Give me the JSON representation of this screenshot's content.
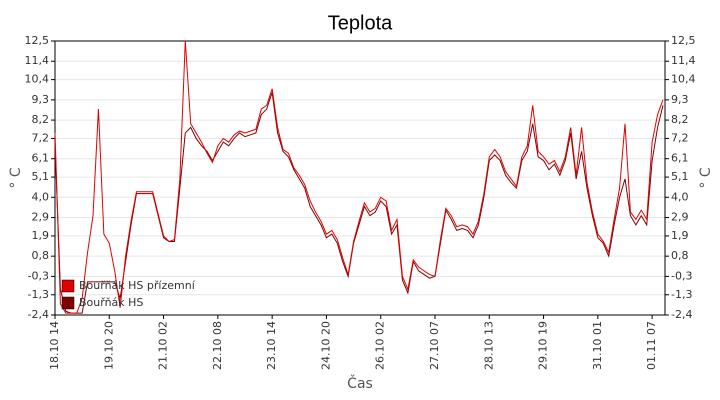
{
  "chart_data": {
    "type": "line",
    "title": "Teplota",
    "x_label": "Čas",
    "y_label": "° C",
    "y2_label": "° C",
    "categories": [
      "18.10 14",
      null,
      null,
      null,
      null,
      null,
      null,
      null,
      null,
      null,
      "19.10 20",
      null,
      null,
      null,
      null,
      null,
      null,
      null,
      null,
      null,
      "21.10 02",
      null,
      null,
      null,
      null,
      null,
      null,
      null,
      null,
      null,
      "22.10 08",
      null,
      null,
      null,
      null,
      null,
      null,
      null,
      null,
      null,
      "23.10 14",
      null,
      null,
      null,
      null,
      null,
      null,
      null,
      null,
      null,
      "24.10 20",
      null,
      null,
      null,
      null,
      null,
      null,
      null,
      null,
      null,
      "26.10 02",
      null,
      null,
      null,
      null,
      null,
      null,
      null,
      null,
      null,
      "27.10 07",
      null,
      null,
      null,
      null,
      null,
      null,
      null,
      null,
      null,
      "28.10 13",
      null,
      null,
      null,
      null,
      null,
      null,
      null,
      null,
      null,
      "29.10 19",
      null,
      null,
      null,
      null,
      null,
      null,
      null,
      null,
      null,
      "31.10 01",
      null,
      null,
      null,
      null,
      null,
      null,
      null,
      null,
      null,
      "01.11 07",
      null,
      null
    ],
    "series": [
      {
        "name": "Bouřňák HS přízemní",
        "color": "#e00000",
        "values": [
          7.5,
          -1.8,
          -2.3,
          -2.3,
          -2.3,
          -1.5,
          1,
          3,
          8.8,
          2,
          1.5,
          0,
          -2,
          0.8,
          2.7,
          4.3,
          4.3,
          4.3,
          4.3,
          3.1,
          1.9,
          1.6,
          1.7,
          5,
          12.5,
          8,
          7.5,
          7,
          6.4,
          5.9,
          6.8,
          7.2,
          7,
          7.4,
          7.6,
          7.5,
          7.6,
          7.7,
          8.8,
          9,
          9.9,
          7.8,
          6.6,
          6.4,
          5.6,
          5.2,
          4.7,
          3.8,
          3.2,
          2.7,
          2.0,
          2.2,
          1.7,
          0.7,
          -0.2,
          1.6,
          2.7,
          3.7,
          3.2,
          3.4,
          4.0,
          3.8,
          2.2,
          2.8,
          -0.3,
          -1.0,
          0.6,
          0.2,
          0.0,
          -0.2,
          -0.3,
          1.7,
          3.4,
          3.0,
          2.4,
          2.5,
          2.4,
          2.0,
          2.7,
          4.2,
          6.2,
          6.6,
          6.2,
          5.4,
          5.0,
          4.6,
          6.2,
          6.8,
          9.0,
          6.5,
          6.2,
          5.8,
          6.0,
          5.4,
          6.2,
          7.8,
          5.2,
          7.8,
          4.8,
          3.2,
          2.0,
          1.6,
          1.0,
          2.8,
          4.5,
          8.0,
          3.2,
          2.8,
          3.3,
          2.8,
          7.0,
          8.5,
          9.3
        ]
      },
      {
        "name": "Bouřňák HS",
        "color": "#800000",
        "values": [
          7.0,
          -1.0,
          -2.2,
          -2.3,
          -2.3,
          -2.3,
          -0.6,
          -0.6,
          -0.6,
          -0.6,
          -0.6,
          -0.6,
          -1.5,
          0.5,
          2.5,
          4.2,
          4.2,
          4.2,
          4.2,
          3.0,
          1.8,
          1.6,
          1.6,
          4.5,
          7.5,
          7.8,
          7.2,
          6.8,
          6.5,
          6.0,
          6.5,
          7.0,
          6.8,
          7.2,
          7.5,
          7.3,
          7.4,
          7.5,
          8.5,
          8.8,
          9.7,
          7.5,
          6.5,
          6.2,
          5.5,
          5.0,
          4.5,
          3.5,
          3.0,
          2.5,
          1.8,
          2.0,
          1.5,
          0.5,
          -0.3,
          1.5,
          2.5,
          3.5,
          3.0,
          3.2,
          3.8,
          3.5,
          2.0,
          2.5,
          -0.5,
          -1.2,
          0.5,
          0.0,
          -0.2,
          -0.4,
          -0.3,
          1.5,
          3.3,
          2.8,
          2.2,
          2.3,
          2.2,
          1.8,
          2.5,
          4.0,
          6.0,
          6.3,
          6.0,
          5.2,
          4.8,
          4.5,
          6.0,
          6.5,
          8.0,
          6.2,
          6.0,
          5.5,
          5.8,
          5.2,
          6.0,
          7.5,
          5.0,
          6.5,
          4.5,
          3.0,
          1.8,
          1.5,
          0.8,
          2.5,
          4.0,
          5.0,
          3.0,
          2.5,
          3.0,
          2.5,
          6.0,
          7.8,
          9.0
        ]
      }
    ],
    "ylim": [
      -2.4,
      12.5
    ],
    "yticks": [
      {
        "value": 12.5,
        "label": "12,5"
      },
      {
        "value": 11.4,
        "label": "11,4"
      },
      {
        "value": 10.4,
        "label": "10,4"
      },
      {
        "value": 9.3,
        "label": "9,3"
      },
      {
        "value": 8.2,
        "label": "8,2"
      },
      {
        "value": 7.2,
        "label": "7,2"
      },
      {
        "value": 6.1,
        "label": "6,1"
      },
      {
        "value": 5.1,
        "label": "5,1"
      },
      {
        "value": 4.0,
        "label": "4,0"
      },
      {
        "value": 2.9,
        "label": "2,9"
      },
      {
        "value": 1.9,
        "label": "1,9"
      },
      {
        "value": 0.8,
        "label": "0,8"
      },
      {
        "value": -0.3,
        "label": "-0,3"
      },
      {
        "value": -1.3,
        "label": "-1,3"
      },
      {
        "value": -2.4,
        "label": "-2,4"
      }
    ],
    "y2lim": [
      -2.4,
      12.5
    ],
    "y2ticks": [
      {
        "value": 12.5,
        "label": "12,5"
      },
      {
        "value": 11.4,
        "label": "11,4"
      },
      {
        "value": 10.4,
        "label": "10,4"
      },
      {
        "value": 9.3,
        "label": "9,3"
      },
      {
        "value": 8.2,
        "label": "8,2"
      },
      {
        "value": 7.2,
        "label": "7,2"
      },
      {
        "value": 6.1,
        "label": "6,1"
      },
      {
        "value": 5.1,
        "label": "5,1"
      },
      {
        "value": 4.0,
        "label": "4,0"
      },
      {
        "value": 2.9,
        "label": "2,9"
      },
      {
        "value": 1.9,
        "label": "1,9"
      },
      {
        "value": 0.8,
        "label": "0,8"
      },
      {
        "value": -0.3,
        "label": "-0,3"
      },
      {
        "value": -1.3,
        "label": "-1,3"
      },
      {
        "value": -2.4,
        "label": "-2,4"
      }
    ],
    "grid": true,
    "legend": "lower left"
  }
}
